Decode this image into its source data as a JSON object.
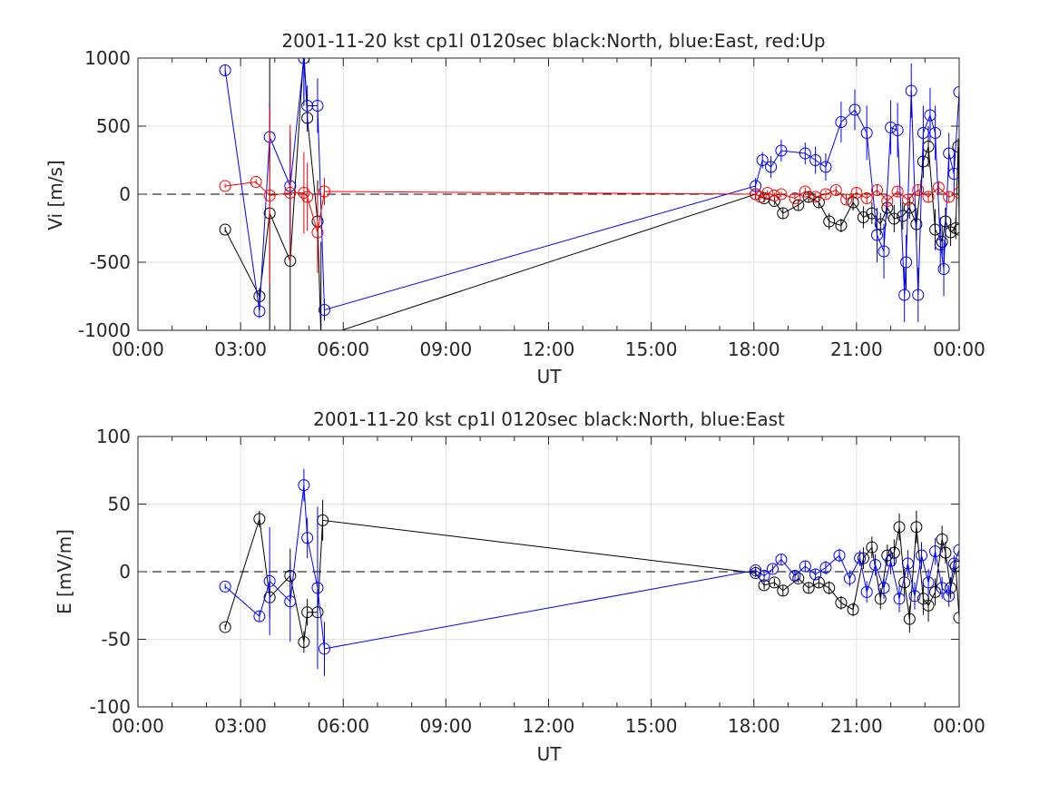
{
  "chart_data": [
    {
      "type": "scatter",
      "title": "2001-11-20 kst cp1l 0120sec black:North, blue:East, red:Up",
      "xlabel": "UT",
      "ylabel": "Vi [m/s]",
      "xlim": [
        0,
        24
      ],
      "ylim": [
        -1000,
        1000
      ],
      "grid": true,
      "reference_line": 0,
      "xticks": [
        0,
        3,
        6,
        9,
        12,
        15,
        18,
        21,
        24
      ],
      "xtick_labels": [
        "00:00",
        "03:00",
        "06:00",
        "09:00",
        "12:00",
        "15:00",
        "18:00",
        "21:00",
        "00:00"
      ],
      "yticks": [
        -1000,
        -500,
        0,
        500,
        1000
      ],
      "ytick_labels": [
        "-1000",
        "-500",
        "0",
        "500",
        "1000"
      ],
      "series": [
        {
          "color": "#000000",
          "points": [
            [
              2.55,
              -260,
              20
            ],
            [
              3.55,
              -750,
              60
            ],
            [
              3.85,
              -140,
              1200
            ],
            [
              4.45,
              -490,
              900
            ],
            [
              4.85,
              1050,
              400
            ],
            [
              4.95,
              560,
              100
            ],
            [
              5.25,
              -200,
              300
            ],
            [
              5.35,
              -1050,
              700
            ],
            [
              18.05,
              0,
              30
            ],
            [
              18.3,
              -30,
              30
            ],
            [
              18.6,
              -50,
              30
            ],
            [
              18.85,
              -140,
              40
            ],
            [
              19.3,
              -80,
              40
            ],
            [
              19.6,
              -20,
              40
            ],
            [
              19.9,
              -60,
              40
            ],
            [
              20.2,
              -200,
              60
            ],
            [
              20.55,
              -230,
              50
            ],
            [
              20.9,
              -60,
              60
            ],
            [
              21.2,
              -170,
              80
            ],
            [
              21.45,
              -140,
              80
            ],
            [
              21.7,
              -220,
              80
            ],
            [
              21.9,
              -100,
              80
            ],
            [
              22.1,
              -180,
              100
            ],
            [
              22.35,
              -160,
              100
            ],
            [
              22.55,
              -100,
              80
            ],
            [
              22.75,
              -220,
              120
            ],
            [
              22.95,
              240,
              120
            ],
            [
              23.1,
              350,
              150
            ],
            [
              23.3,
              -260,
              150
            ],
            [
              23.5,
              -350,
              120
            ],
            [
              23.6,
              -200,
              100
            ],
            [
              23.75,
              -280,
              100
            ],
            [
              23.9,
              -250,
              80
            ],
            [
              23.97,
              350,
              60
            ],
            [
              24.0,
              -260,
              60
            ]
          ]
        },
        {
          "color": "#0000ff",
          "points": [
            [
              2.55,
              910,
              40
            ],
            [
              3.55,
              -860,
              50
            ],
            [
              3.85,
              420,
              250
            ],
            [
              4.45,
              60,
              400
            ],
            [
              4.85,
              1000,
              300
            ],
            [
              4.95,
              650,
              150
            ],
            [
              5.25,
              650,
              200
            ],
            [
              5.45,
              -850,
              80
            ],
            [
              18.05,
              60,
              60
            ],
            [
              18.25,
              250,
              60
            ],
            [
              18.5,
              200,
              80
            ],
            [
              18.8,
              320,
              80
            ],
            [
              19.5,
              300,
              80
            ],
            [
              19.8,
              250,
              100
            ],
            [
              20.1,
              200,
              100
            ],
            [
              20.55,
              530,
              150
            ],
            [
              20.95,
              620,
              150
            ],
            [
              21.3,
              450,
              200
            ],
            [
              21.6,
              -300,
              200
            ],
            [
              21.8,
              -420,
              200
            ],
            [
              22.0,
              490,
              200
            ],
            [
              22.2,
              470,
              200
            ],
            [
              22.4,
              -740,
              200
            ],
            [
              22.45,
              -500,
              200
            ],
            [
              22.6,
              760,
              200
            ],
            [
              22.8,
              -740,
              200
            ],
            [
              22.95,
              450,
              200
            ],
            [
              23.15,
              580,
              200
            ],
            [
              23.3,
              450,
              200
            ],
            [
              23.45,
              -370,
              200
            ],
            [
              23.55,
              -550,
              200
            ],
            [
              23.7,
              300,
              150
            ],
            [
              23.85,
              150,
              150
            ],
            [
              24.0,
              750,
              150
            ]
          ]
        },
        {
          "color": "#ff0000",
          "points": [
            [
              2.55,
              60,
              15
            ],
            [
              3.45,
              90,
              20
            ],
            [
              3.85,
              -10,
              650
            ],
            [
              4.45,
              10,
              500
            ],
            [
              4.85,
              10,
              300
            ],
            [
              4.95,
              -20,
              250
            ],
            [
              5.25,
              -280,
              300
            ],
            [
              5.45,
              20,
              100
            ],
            [
              18.05,
              0,
              20
            ],
            [
              18.2,
              -20,
              20
            ],
            [
              18.4,
              10,
              20
            ],
            [
              18.6,
              -10,
              20
            ],
            [
              18.8,
              0,
              20
            ],
            [
              19.2,
              -30,
              30
            ],
            [
              19.5,
              20,
              30
            ],
            [
              19.8,
              -20,
              30
            ],
            [
              20.1,
              0,
              30
            ],
            [
              20.4,
              30,
              30
            ],
            [
              20.7,
              -40,
              40
            ],
            [
              21.0,
              10,
              40
            ],
            [
              21.3,
              -30,
              40
            ],
            [
              21.6,
              30,
              40
            ],
            [
              21.9,
              -50,
              40
            ],
            [
              22.2,
              20,
              40
            ],
            [
              22.5,
              -40,
              40
            ],
            [
              22.8,
              30,
              40
            ],
            [
              23.1,
              -20,
              40
            ],
            [
              23.4,
              50,
              40
            ],
            [
              23.7,
              -20,
              40
            ],
            [
              24.0,
              10,
              40
            ]
          ]
        }
      ]
    },
    {
      "type": "scatter",
      "title": "2001-11-20 kst cp1l 0120sec black:North, blue:East",
      "xlabel": "UT",
      "ylabel": "E [mV/m]",
      "xlim": [
        0,
        24
      ],
      "ylim": [
        -100,
        100
      ],
      "grid": true,
      "reference_line": 0,
      "xticks": [
        0,
        3,
        6,
        9,
        12,
        15,
        18,
        21,
        24
      ],
      "xtick_labels": [
        "00:00",
        "03:00",
        "06:00",
        "09:00",
        "12:00",
        "15:00",
        "18:00",
        "21:00",
        "00:00"
      ],
      "yticks": [
        -100,
        -50,
        0,
        50,
        100
      ],
      "ytick_labels": [
        "-100",
        "-50",
        "0",
        "50",
        "100"
      ],
      "series": [
        {
          "color": "#000000",
          "points": [
            [
              2.55,
              -41,
              2
            ],
            [
              3.55,
              39,
              6
            ],
            [
              3.85,
              -19,
              15
            ],
            [
              4.45,
              -3,
              20
            ],
            [
              4.85,
              -52,
              8
            ],
            [
              4.95,
              -30,
              10
            ],
            [
              5.25,
              -30,
              20
            ],
            [
              5.4,
              38,
              15
            ],
            [
              18.05,
              -1,
              3
            ],
            [
              18.3,
              -10,
              3
            ],
            [
              18.6,
              -8,
              3
            ],
            [
              18.85,
              -14,
              4
            ],
            [
              19.3,
              -5,
              3
            ],
            [
              19.6,
              -12,
              4
            ],
            [
              19.9,
              -8,
              4
            ],
            [
              20.2,
              -12,
              5
            ],
            [
              20.55,
              -23,
              5
            ],
            [
              20.9,
              -28,
              5
            ],
            [
              21.2,
              10,
              8
            ],
            [
              21.45,
              18,
              8
            ],
            [
              21.7,
              -20,
              8
            ],
            [
              21.9,
              12,
              8
            ],
            [
              22.1,
              14,
              10
            ],
            [
              22.25,
              33,
              10
            ],
            [
              22.4,
              -8,
              10
            ],
            [
              22.55,
              -35,
              10
            ],
            [
              22.75,
              33,
              12
            ],
            [
              22.95,
              -20,
              12
            ],
            [
              23.1,
              -25,
              12
            ],
            [
              23.3,
              -15,
              10
            ],
            [
              23.5,
              24,
              10
            ],
            [
              23.6,
              14,
              8
            ],
            [
              23.75,
              -12,
              8
            ],
            [
              23.9,
              4,
              6
            ],
            [
              24.0,
              -34,
              6
            ]
          ]
        },
        {
          "color": "#0000ff",
          "points": [
            [
              2.55,
              -11,
              2
            ],
            [
              3.55,
              -33,
              4
            ],
            [
              3.85,
              -7,
              40
            ],
            [
              4.45,
              -22,
              30
            ],
            [
              4.85,
              64,
              12
            ],
            [
              4.95,
              25,
              15
            ],
            [
              5.25,
              -12,
              60
            ],
            [
              5.45,
              -57,
              20
            ],
            [
              18.05,
              1,
              3
            ],
            [
              18.3,
              -3,
              3
            ],
            [
              18.55,
              2,
              3
            ],
            [
              18.8,
              9,
              4
            ],
            [
              19.2,
              -3,
              4
            ],
            [
              19.5,
              4,
              4
            ],
            [
              19.8,
              -2,
              4
            ],
            [
              20.1,
              3,
              5
            ],
            [
              20.5,
              12,
              5
            ],
            [
              20.8,
              -5,
              6
            ],
            [
              21.1,
              10,
              6
            ],
            [
              21.3,
              -15,
              8
            ],
            [
              21.55,
              5,
              8
            ],
            [
              21.8,
              -12,
              8
            ],
            [
              22.0,
              8,
              10
            ],
            [
              22.25,
              -20,
              10
            ],
            [
              22.5,
              6,
              10
            ],
            [
              22.7,
              -18,
              10
            ],
            [
              22.9,
              12,
              10
            ],
            [
              23.1,
              -8,
              10
            ],
            [
              23.3,
              15,
              10
            ],
            [
              23.5,
              -12,
              8
            ],
            [
              23.7,
              -18,
              8
            ],
            [
              23.85,
              6,
              6
            ],
            [
              24.0,
              16,
              6
            ]
          ]
        }
      ]
    }
  ]
}
